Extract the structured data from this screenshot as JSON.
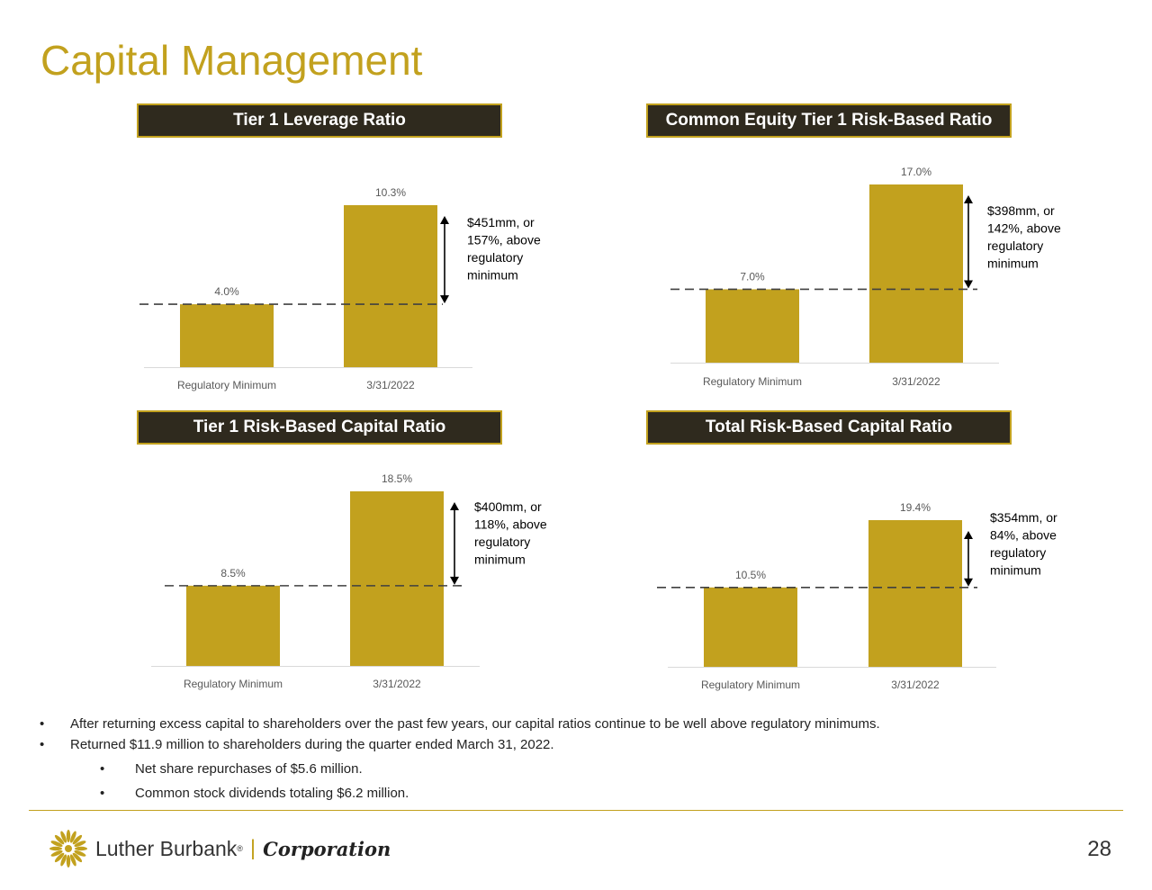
{
  "title": "Capital Management",
  "colors": {
    "accent": "#C2A11E",
    "header_bg": "#2F2A1E"
  },
  "chart_data": [
    {
      "type": "bar",
      "title": "Tier 1 Leverage Ratio",
      "categories": [
        "Regulatory Minimum",
        "3/31/2022"
      ],
      "values": [
        4.0,
        10.3
      ],
      "value_labels": [
        "4.0%",
        "10.3%"
      ],
      "reference_line": 4.0,
      "annotation": [
        "$451mm, or",
        "157%, above",
        "regulatory",
        "minimum"
      ],
      "ylim": [
        0,
        11.5
      ]
    },
    {
      "type": "bar",
      "title": "Common Equity Tier 1 Risk-Based Ratio",
      "categories": [
        "Regulatory Minimum",
        "3/31/2022"
      ],
      "values": [
        7.0,
        17.0
      ],
      "value_labels": [
        "7.0%",
        "17.0%"
      ],
      "reference_line": 7.0,
      "annotation": [
        "$398mm, or",
        "142%, above",
        "regulatory",
        "minimum"
      ],
      "ylim": [
        0,
        18
      ]
    },
    {
      "type": "bar",
      "title": "Tier 1 Risk-Based Capital Ratio",
      "categories": [
        "Regulatory Minimum",
        "3/31/2022"
      ],
      "values": [
        8.5,
        18.5
      ],
      "value_labels": [
        "8.5%",
        "18.5%"
      ],
      "reference_line": 8.5,
      "annotation": [
        "$400mm, or",
        "118%, above",
        "regulatory",
        "minimum"
      ],
      "ylim": [
        0,
        19
      ]
    },
    {
      "type": "bar",
      "title": "Total Risk-Based Capital Ratio",
      "categories": [
        "Regulatory Minimum",
        "3/31/2022"
      ],
      "values": [
        10.5,
        19.4
      ],
      "value_labels": [
        "10.5%",
        "19.4%"
      ],
      "reference_line": 10.5,
      "annotation": [
        "$354mm, or",
        "84%, above",
        "regulatory",
        "minimum"
      ],
      "ylim": [
        0,
        21
      ]
    }
  ],
  "bullets": [
    "After returning excess capital to shareholders over the past few years, our capital ratios continue to be well above regulatory minimums.",
    "Returned $11.9 million to shareholders during the quarter ended March 31, 2022."
  ],
  "sub_bullets": [
    "Net share repurchases of $5.6 million.",
    "Common stock dividends totaling $6.2 million."
  ],
  "bullet_char": "•",
  "footer": {
    "brand": "Luther Burbank",
    "registered": "®",
    "separator": "|",
    "corporation": "Corporation",
    "logo_icon": "sunburst-icon",
    "page_number": "28"
  }
}
